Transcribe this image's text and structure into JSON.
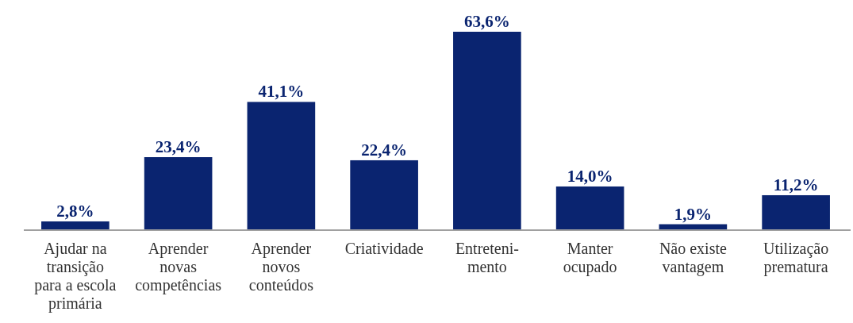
{
  "chart_data": {
    "type": "bar",
    "categories": [
      "Ajudar na\ntransição\npara a escola\nprimária",
      "Aprender\nnovas\ncompetências",
      "Aprender\nnovos\nconteúdos",
      "Criatividade",
      "Entreteni-\nmento",
      "Manter\nocupado",
      "Não existe\nvantagem",
      "Utilização\nprematura"
    ],
    "values": [
      2.8,
      23.4,
      41.1,
      22.4,
      63.6,
      14.0,
      1.9,
      11.2
    ],
    "value_labels": [
      "2,8%",
      "23,4%",
      "41,1%",
      "22,4%",
      "63,6%",
      "14,0%",
      "1,9%",
      "11,2%"
    ],
    "color": "#0a2470"
  }
}
